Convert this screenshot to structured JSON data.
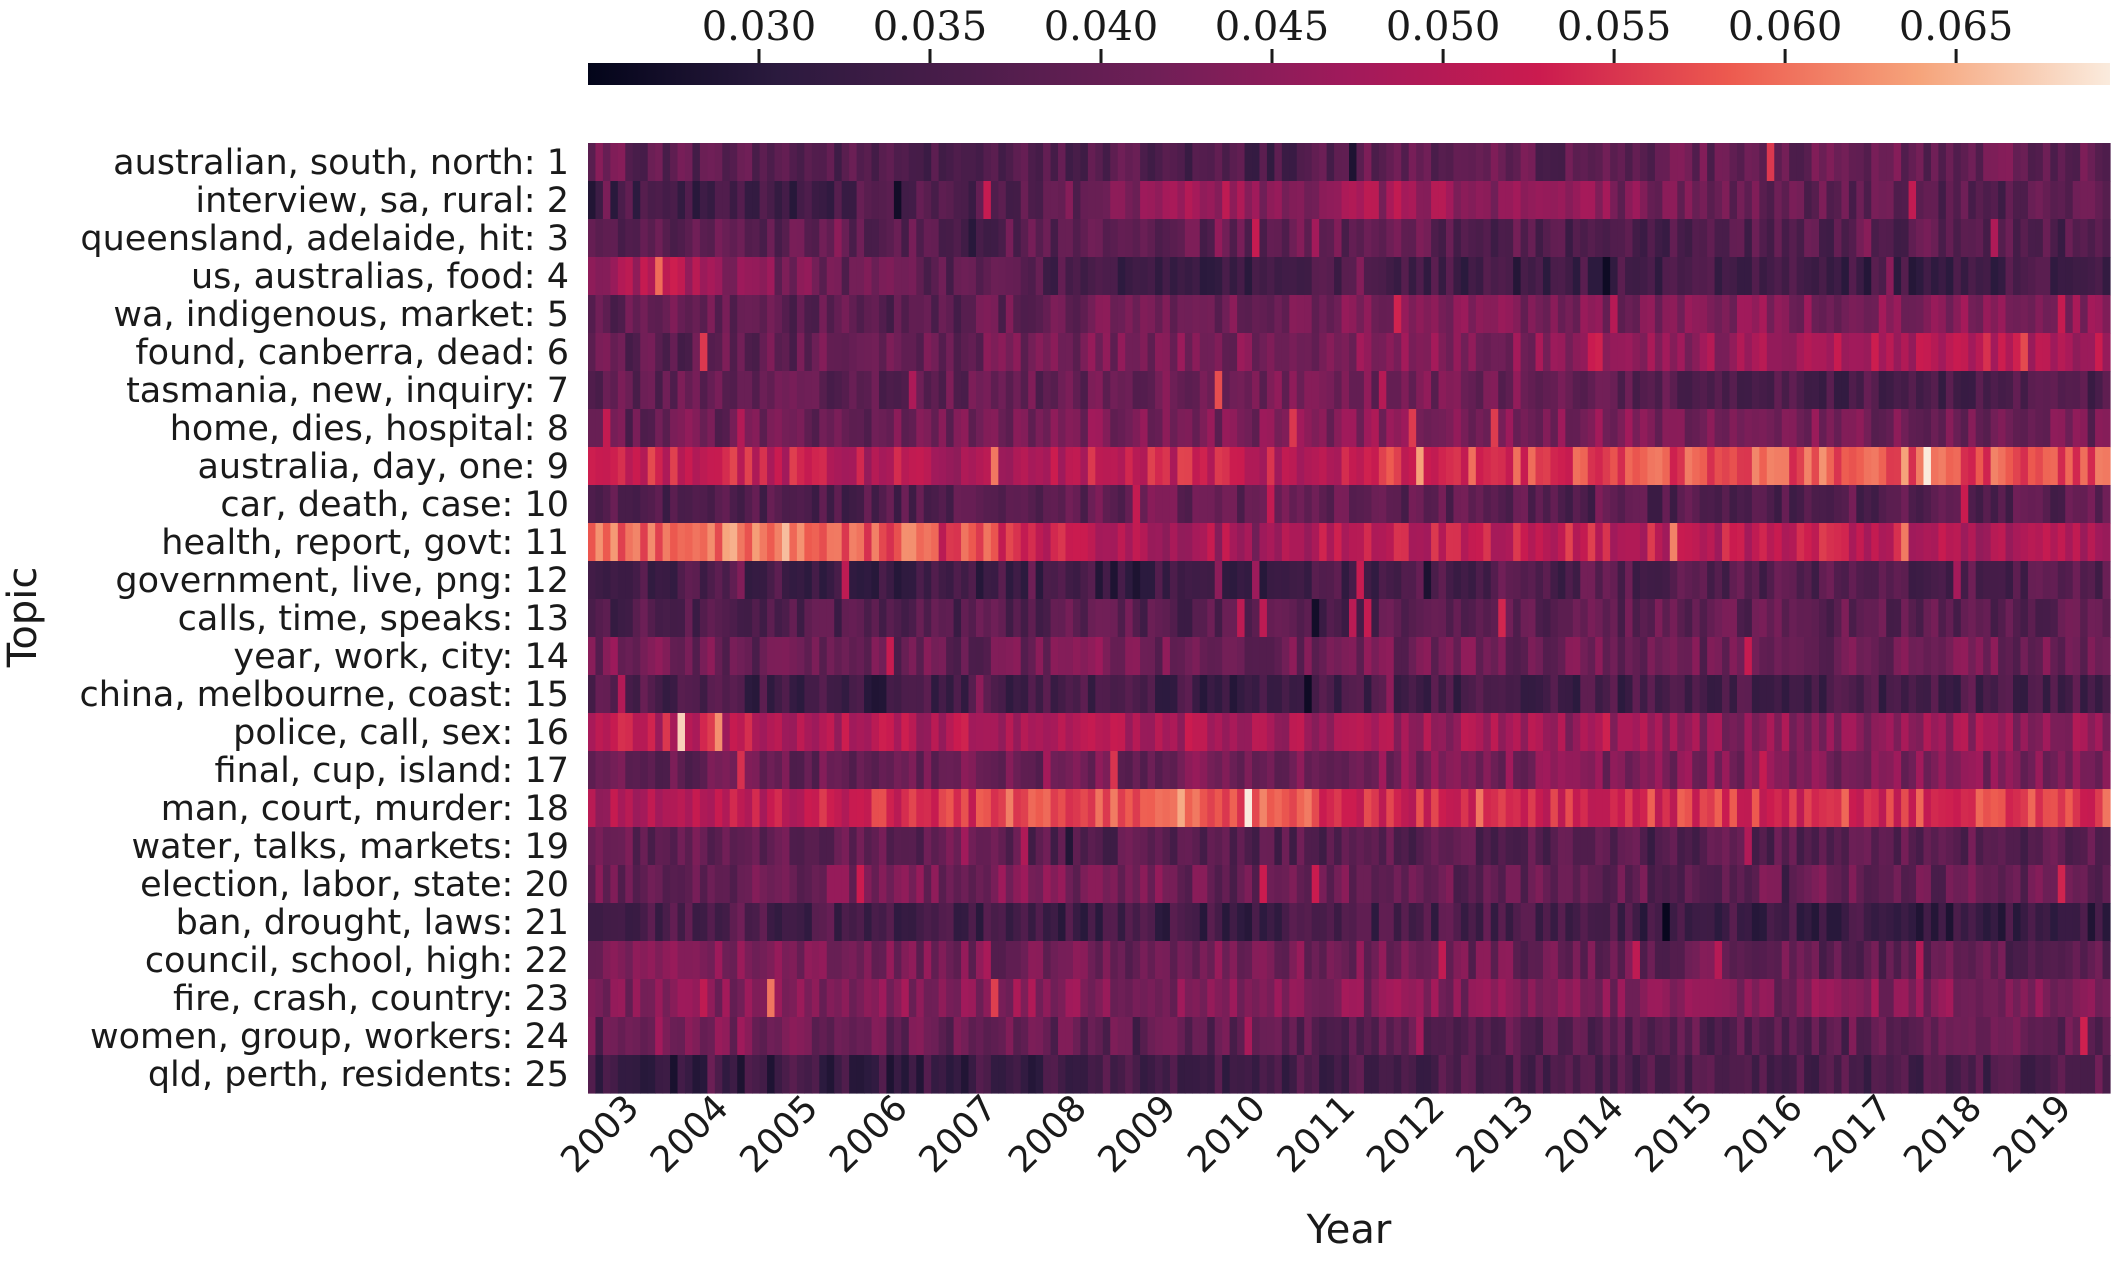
{
  "chart_data": {
    "type": "heatmap",
    "title": "",
    "xlabel": "Year",
    "ylabel": "Topic",
    "x_tick_labels": [
      "2003",
      "2004",
      "2005",
      "2006",
      "2007",
      "2008",
      "2009",
      "2010",
      "2011",
      "2012",
      "2013",
      "2014",
      "2015",
      "2016",
      "2017",
      "2018",
      "2019"
    ],
    "topics": [
      "australian, south, north: 1",
      "interview, sa, rural: 2",
      "queensland, adelaide, hit: 3",
      "us, australias, food: 4",
      "wa, indigenous, market: 5",
      "found, canberra, dead: 6",
      "tasmania, new, inquiry: 7",
      "home, dies, hospital: 8",
      "australia, day, one: 9",
      "car, death, case: 10",
      "health, report, govt: 11",
      "government, live, png: 12",
      "calls, time, speaks: 13",
      "year, work, city: 14",
      "china, melbourne, coast: 15",
      "police, call, sex: 16",
      "final, cup, island: 17",
      "man, court, murder: 18",
      "water, talks, markets: 19",
      "election, labor, state: 20",
      "ban, drought, laws: 21",
      "council, school, high: 22",
      "fire, crash, country: 23",
      "women, group, workers: 24",
      "qld, perth, residents: 25"
    ],
    "colorbar": {
      "min": 0.025,
      "max": 0.0695,
      "ticks": [
        0.03,
        0.035,
        0.04,
        0.045,
        0.05,
        0.055,
        0.06,
        0.065
      ],
      "tick_labels": [
        "0.030",
        "0.035",
        "0.040",
        "0.045",
        "0.050",
        "0.055",
        "0.060",
        "0.065"
      ],
      "colormap": "rocket"
    },
    "columns_per_year": 12,
    "year_profiles": [
      [
        0.04,
        0.039,
        0.038,
        0.037,
        0.037,
        0.036,
        0.038,
        0.036,
        0.036,
        0.04,
        0.039,
        0.039,
        0.04,
        0.04,
        0.039,
        0.04,
        0.04
      ],
      [
        0.034,
        0.033,
        0.034,
        0.036,
        0.037,
        0.038,
        0.044,
        0.047,
        0.045,
        0.049,
        0.046,
        0.045,
        0.042,
        0.04,
        0.039,
        0.038,
        0.038
      ],
      [
        0.037,
        0.038,
        0.038,
        0.039,
        0.038,
        0.038,
        0.038,
        0.039,
        0.04,
        0.039,
        0.038,
        0.037,
        0.037,
        0.038,
        0.038,
        0.038,
        0.037
      ],
      [
        0.048,
        0.049,
        0.043,
        0.04,
        0.039,
        0.037,
        0.035,
        0.034,
        0.034,
        0.035,
        0.034,
        0.034,
        0.034,
        0.035,
        0.034,
        0.034,
        0.035
      ],
      [
        0.039,
        0.04,
        0.039,
        0.039,
        0.039,
        0.04,
        0.041,
        0.042,
        0.042,
        0.043,
        0.043,
        0.043,
        0.043,
        0.044,
        0.043,
        0.044,
        0.044
      ],
      [
        0.039,
        0.039,
        0.039,
        0.04,
        0.04,
        0.041,
        0.042,
        0.043,
        0.043,
        0.044,
        0.044,
        0.044,
        0.045,
        0.047,
        0.048,
        0.05,
        0.049
      ],
      [
        0.039,
        0.04,
        0.038,
        0.039,
        0.04,
        0.04,
        0.04,
        0.041,
        0.041,
        0.041,
        0.041,
        0.039,
        0.038,
        0.037,
        0.036,
        0.036,
        0.037
      ],
      [
        0.039,
        0.04,
        0.04,
        0.041,
        0.041,
        0.043,
        0.043,
        0.042,
        0.043,
        0.043,
        0.044,
        0.043,
        0.043,
        0.043,
        0.042,
        0.042,
        0.041
      ],
      [
        0.053,
        0.053,
        0.052,
        0.051,
        0.049,
        0.05,
        0.052,
        0.052,
        0.051,
        0.055,
        0.056,
        0.056,
        0.057,
        0.058,
        0.059,
        0.057,
        0.058
      ],
      [
        0.037,
        0.037,
        0.037,
        0.037,
        0.038,
        0.039,
        0.04,
        0.04,
        0.04,
        0.039,
        0.039,
        0.038,
        0.037,
        0.037,
        0.038,
        0.038,
        0.038
      ],
      [
        0.059,
        0.06,
        0.061,
        0.059,
        0.058,
        0.054,
        0.048,
        0.048,
        0.049,
        0.051,
        0.052,
        0.052,
        0.051,
        0.051,
        0.053,
        0.049,
        0.048
      ],
      [
        0.034,
        0.035,
        0.035,
        0.034,
        0.034,
        0.034,
        0.033,
        0.034,
        0.034,
        0.036,
        0.037,
        0.038,
        0.037,
        0.037,
        0.037,
        0.037,
        0.037
      ],
      [
        0.036,
        0.037,
        0.036,
        0.037,
        0.037,
        0.038,
        0.038,
        0.037,
        0.037,
        0.038,
        0.038,
        0.039,
        0.039,
        0.039,
        0.039,
        0.039,
        0.039
      ],
      [
        0.041,
        0.041,
        0.04,
        0.04,
        0.04,
        0.041,
        0.041,
        0.042,
        0.041,
        0.041,
        0.041,
        0.041,
        0.041,
        0.041,
        0.041,
        0.042,
        0.041
      ],
      [
        0.036,
        0.036,
        0.034,
        0.033,
        0.035,
        0.035,
        0.035,
        0.034,
        0.034,
        0.035,
        0.035,
        0.035,
        0.035,
        0.035,
        0.035,
        0.036,
        0.036
      ],
      [
        0.05,
        0.051,
        0.051,
        0.049,
        0.049,
        0.049,
        0.049,
        0.048,
        0.048,
        0.047,
        0.047,
        0.046,
        0.046,
        0.045,
        0.045,
        0.046,
        0.046
      ],
      [
        0.04,
        0.04,
        0.04,
        0.041,
        0.041,
        0.041,
        0.041,
        0.042,
        0.042,
        0.043,
        0.043,
        0.043,
        0.043,
        0.043,
        0.043,
        0.043,
        0.043
      ],
      [
        0.049,
        0.05,
        0.052,
        0.053,
        0.055,
        0.058,
        0.06,
        0.058,
        0.057,
        0.054,
        0.053,
        0.053,
        0.055,
        0.055,
        0.055,
        0.055,
        0.056
      ],
      [
        0.039,
        0.039,
        0.039,
        0.039,
        0.039,
        0.038,
        0.038,
        0.038,
        0.038,
        0.038,
        0.037,
        0.038,
        0.038,
        0.038,
        0.038,
        0.038,
        0.038
      ],
      [
        0.041,
        0.04,
        0.041,
        0.042,
        0.042,
        0.043,
        0.042,
        0.041,
        0.041,
        0.04,
        0.039,
        0.039,
        0.039,
        0.04,
        0.04,
        0.039,
        0.04
      ],
      [
        0.037,
        0.036,
        0.035,
        0.035,
        0.034,
        0.033,
        0.034,
        0.034,
        0.035,
        0.035,
        0.036,
        0.035,
        0.034,
        0.034,
        0.033,
        0.033,
        0.033
      ],
      [
        0.043,
        0.043,
        0.044,
        0.043,
        0.042,
        0.041,
        0.041,
        0.042,
        0.042,
        0.042,
        0.041,
        0.041,
        0.04,
        0.04,
        0.039,
        0.039,
        0.039
      ],
      [
        0.043,
        0.043,
        0.044,
        0.044,
        0.045,
        0.045,
        0.044,
        0.044,
        0.043,
        0.044,
        0.043,
        0.043,
        0.044,
        0.044,
        0.044,
        0.044,
        0.043
      ],
      [
        0.043,
        0.044,
        0.042,
        0.041,
        0.04,
        0.04,
        0.039,
        0.039,
        0.039,
        0.038,
        0.038,
        0.038,
        0.038,
        0.038,
        0.038,
        0.039,
        0.039
      ],
      [
        0.033,
        0.032,
        0.033,
        0.033,
        0.033,
        0.034,
        0.035,
        0.035,
        0.035,
        0.036,
        0.036,
        0.036,
        0.036,
        0.036,
        0.036,
        0.036,
        0.036
      ]
    ]
  }
}
